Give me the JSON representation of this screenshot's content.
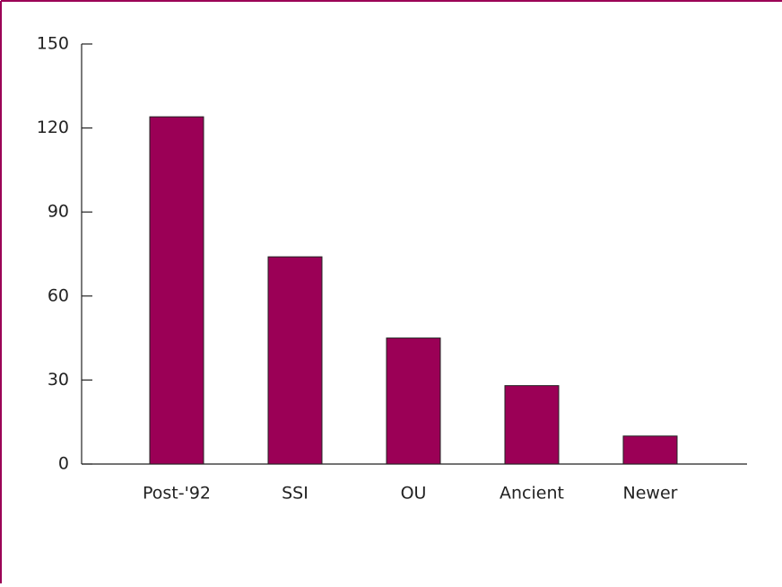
{
  "chart_data": {
    "type": "bar",
    "categories": [
      "Post-'92",
      "SSI",
      "OU",
      "Ancient",
      "Newer"
    ],
    "values": [
      124,
      74,
      45,
      28,
      10
    ],
    "color": "#9b0056",
    "ylim": [
      0,
      150
    ],
    "yticks": [
      0,
      30,
      60,
      90,
      120,
      150
    ],
    "grid": false
  }
}
